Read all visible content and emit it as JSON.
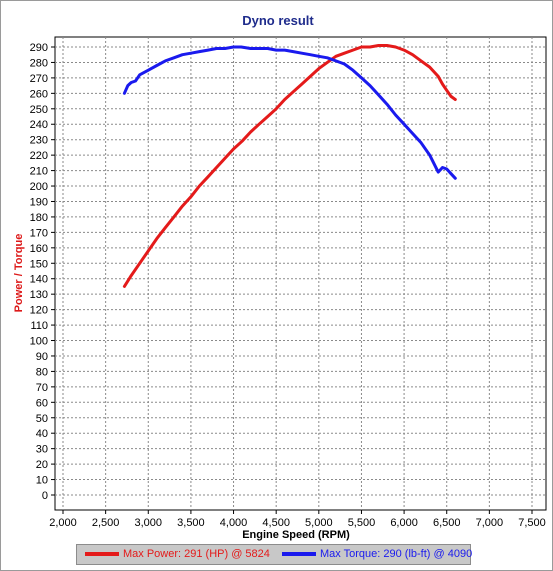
{
  "chart_data": {
    "type": "line",
    "title": "Dyno result",
    "xlabel": "Engine Speed (RPM)",
    "ylabel": "Power / Torque",
    "xlim": [
      2000,
      7500
    ],
    "ylim": [
      0,
      290
    ],
    "xticks": [
      "2,000",
      "2,500",
      "3,000",
      "3,500",
      "4,000",
      "4,500",
      "5,000",
      "5,500",
      "6,000",
      "6,500",
      "7,000",
      "7,500"
    ],
    "yticks": [
      "0",
      "10",
      "20",
      "30",
      "40",
      "50",
      "60",
      "70",
      "80",
      "90",
      "100",
      "110",
      "120",
      "130",
      "140",
      "150",
      "160",
      "170",
      "180",
      "190",
      "200",
      "210",
      "220",
      "230",
      "240",
      "250",
      "260",
      "270",
      "280",
      "290"
    ],
    "grid": true,
    "legend_position": "bottom",
    "series": [
      {
        "name": "Max Power: 291 (HP) @ 5824",
        "color": "#e41a1a",
        "x": [
          2720,
          2800,
          2900,
          3000,
          3100,
          3200,
          3300,
          3400,
          3500,
          3600,
          3700,
          3800,
          3900,
          4000,
          4100,
          4200,
          4300,
          4400,
          4500,
          4600,
          4700,
          4800,
          4900,
          5000,
          5100,
          5200,
          5300,
          5400,
          5500,
          5600,
          5700,
          5800,
          5900,
          6000,
          6100,
          6200,
          6300,
          6400,
          6450,
          6500,
          6550,
          6600
        ],
        "y": [
          135,
          142,
          150,
          158,
          166,
          173,
          180,
          187,
          193,
          200,
          206,
          212,
          218,
          224,
          229,
          235,
          240,
          245,
          250,
          256,
          261,
          266,
          271,
          276,
          280,
          284,
          286,
          288,
          290,
          290,
          291,
          291,
          290,
          288,
          285,
          281,
          277,
          271,
          266,
          262,
          258,
          256
        ]
      },
      {
        "name": "Max Torque: 290 (lb-ft) @ 4090",
        "color": "#1a1aee",
        "x": [
          2720,
          2760,
          2800,
          2850,
          2900,
          3000,
          3100,
          3200,
          3300,
          3400,
          3500,
          3600,
          3700,
          3800,
          3900,
          4000,
          4090,
          4200,
          4300,
          4400,
          4500,
          4600,
          4700,
          4800,
          4900,
          5000,
          5100,
          5200,
          5300,
          5400,
          5500,
          5600,
          5700,
          5800,
          5900,
          6000,
          6100,
          6200,
          6300,
          6400,
          6450,
          6500,
          6550,
          6600
        ],
        "y": [
          260,
          265,
          267,
          268,
          272,
          275,
          278,
          281,
          283,
          285,
          286,
          287,
          288,
          289,
          289,
          290,
          290,
          289,
          289,
          289,
          288,
          288,
          287,
          286,
          285,
          284,
          283,
          281,
          279,
          275,
          270,
          265,
          259,
          253,
          246,
          240,
          234,
          228,
          220,
          209,
          212,
          211,
          208,
          205
        ]
      }
    ]
  }
}
